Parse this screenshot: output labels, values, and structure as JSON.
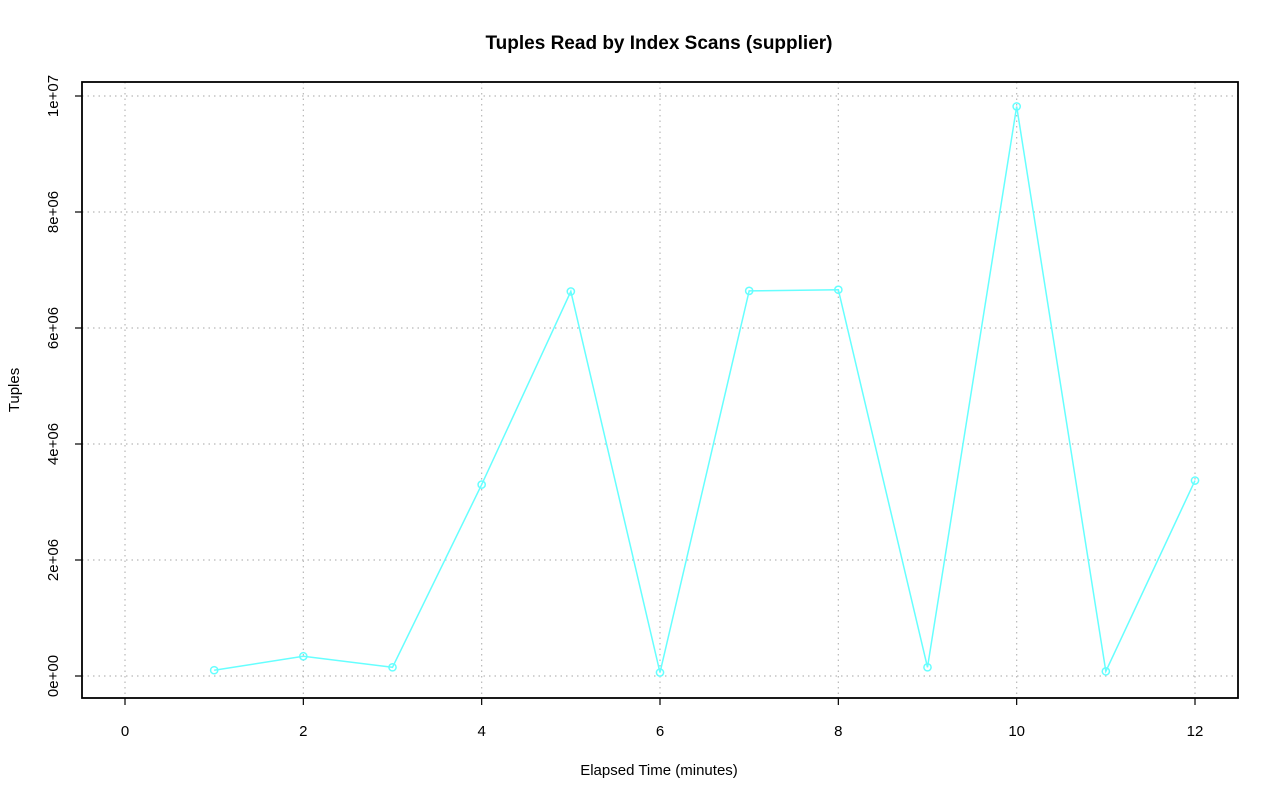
{
  "chart_data": {
    "type": "line",
    "title": "Tuples Read by Index Scans (supplier)",
    "xlabel": "Elapsed Time (minutes)",
    "ylabel": "Tuples",
    "xlim": [
      0,
      12
    ],
    "ylim": [
      0,
      10000000
    ],
    "x_ticks": [
      0,
      2,
      4,
      6,
      8,
      10,
      12
    ],
    "x_tick_labels": [
      "0",
      "2",
      "4",
      "6",
      "8",
      "10",
      "12"
    ],
    "y_ticks": [
      0,
      2000000,
      4000000,
      6000000,
      8000000,
      10000000
    ],
    "y_tick_labels": [
      "0e+00",
      "2e+06",
      "4e+06",
      "6e+06",
      "8e+06",
      "1e+07"
    ],
    "grid": true,
    "markers": "open-circle",
    "series": [
      {
        "color": "#66ffff",
        "x": [
          1,
          2,
          3,
          4,
          5,
          6,
          7,
          8,
          9,
          10,
          11,
          12
        ],
        "y": [
          100000,
          340000,
          150000,
          3300000,
          6630000,
          60000,
          6640000,
          6660000,
          150000,
          9820000,
          80000,
          3370000
        ]
      }
    ]
  }
}
